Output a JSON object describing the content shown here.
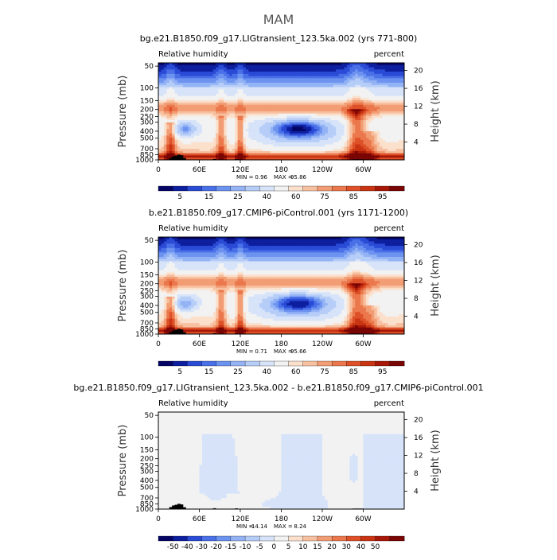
{
  "figure": {
    "title": "MAM"
  },
  "colors": {
    "humidity_scale": [
      "#050566",
      "#0d1f9e",
      "#2a4bd6",
      "#4a70e8",
      "#6d93f0",
      "#93b3f5",
      "#b6cdf8",
      "#d6e3f9",
      "#f2f2f2",
      "#fbe0cc",
      "#f7c0a0",
      "#f29d74",
      "#eb784c",
      "#de5128",
      "#c93512",
      "#a81808",
      "#7a0505"
    ],
    "diff_scale": [
      "#050566",
      "#0d1f9e",
      "#2a4bd6",
      "#4a70e8",
      "#6d93f0",
      "#93b3f5",
      "#b6cdf8",
      "#d6e3f9",
      "#f2f2f2",
      "#fbe0cc",
      "#f7c0a0",
      "#f29d74",
      "#eb784c",
      "#de5128",
      "#c93512",
      "#a81808",
      "#7a0505"
    ],
    "topography": "#000000"
  },
  "chart_data": [
    {
      "type": "heatmap",
      "title": "bg.e21.B1850.f09_g17.LIGtransient_123.5ka.002 (yrs 771-800)",
      "variable_label": "Relative humidity",
      "units_label": "percent",
      "ylabel": "Pressure (mb)",
      "ylabel_right": "Height (km)",
      "x_ticks": [
        "0",
        "60E",
        "120E",
        "180",
        "120W",
        "60W"
      ],
      "y_ticks": [
        "50",
        "100",
        "150",
        "200",
        "250",
        "300",
        "400",
        "500",
        "700",
        "850",
        "1000"
      ],
      "height_ticks": [
        "20",
        "16",
        "12",
        "8",
        "4"
      ],
      "min_label": "MIN =",
      "min_value": "0.96",
      "max_label": "MAX =",
      "max_value": "95.86",
      "colorbar_labels": [
        "5",
        "15",
        "25",
        "40",
        "60",
        "75",
        "85",
        "95"
      ],
      "anomaly": false
    },
    {
      "type": "heatmap",
      "title": "b.e21.B1850.f09_g17.CMIP6-piControl.001 (yrs 1171-1200)",
      "variable_label": "Relative humidity",
      "units_label": "percent",
      "ylabel": "Pressure (mb)",
      "ylabel_right": "Height (km)",
      "x_ticks": [
        "0",
        "60E",
        "120E",
        "180",
        "120W",
        "60W"
      ],
      "y_ticks": [
        "50",
        "100",
        "150",
        "200",
        "250",
        "300",
        "400",
        "500",
        "700",
        "850",
        "1000"
      ],
      "height_ticks": [
        "20",
        "16",
        "12",
        "8",
        "4"
      ],
      "min_label": "MIN =",
      "min_value": "0.71",
      "max_label": "MAX =",
      "max_value": "95.66",
      "colorbar_labels": [
        "5",
        "15",
        "25",
        "40",
        "60",
        "75",
        "85",
        "95"
      ],
      "anomaly": false
    },
    {
      "type": "heatmap",
      "title": "bg.e21.B1850.f09_g17.LIGtransient_123.5ka.002 - b.e21.B1850.f09_g17.CMIP6-piControl.001",
      "variable_label": "Relative humidity",
      "units_label": "percent",
      "ylabel": "Pressure (mb)",
      "ylabel_right": "Height (km)",
      "x_ticks": [
        "0",
        "60E",
        "120E",
        "180",
        "120W",
        "60W"
      ],
      "y_ticks": [
        "50",
        "100",
        "150",
        "200",
        "250",
        "300",
        "400",
        "500",
        "700",
        "850",
        "1000"
      ],
      "height_ticks": [
        "20",
        "16",
        "12",
        "8",
        "4"
      ],
      "min_label": "MIN =",
      "min_value": "-14.14",
      "max_label": "MAX =",
      "max_value": "8.24",
      "colorbar_labels": [
        "-50",
        "-40",
        "-30",
        "-20",
        "-15",
        "-10",
        "-5",
        "0",
        "5",
        "10",
        "15",
        "20",
        "30",
        "40",
        "50"
      ],
      "anomaly": true
    }
  ]
}
